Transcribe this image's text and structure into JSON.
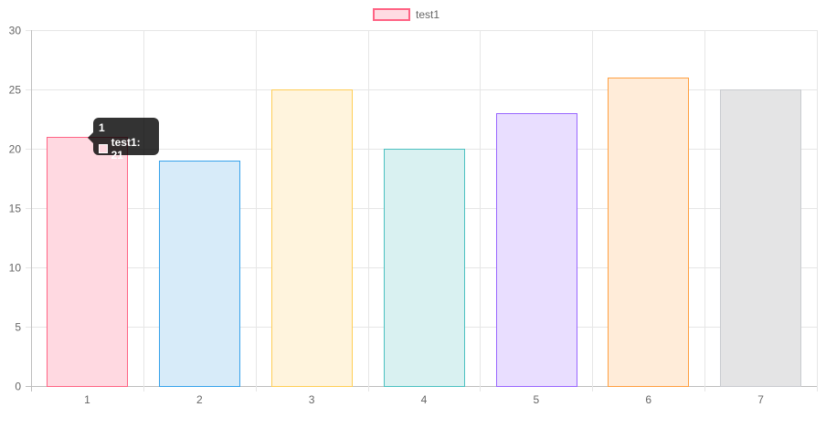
{
  "chart_data": {
    "type": "bar",
    "categories": [
      "1",
      "2",
      "3",
      "4",
      "5",
      "6",
      "7"
    ],
    "series": [
      {
        "name": "test1",
        "values": [
          21,
          19,
          25,
          20,
          23,
          26,
          25
        ]
      }
    ],
    "ylim": [
      0,
      30
    ],
    "yticks": [
      "0",
      "5",
      "10",
      "15",
      "20",
      "25",
      "30"
    ],
    "grid": true,
    "legend_position": "top",
    "legend_swatch_fill": "#FFDCE3",
    "legend_swatch_stroke": "#FF6384",
    "bar_fill_colors": [
      "#FFD9E1",
      "#D7EBF9",
      "#FFF4DD",
      "#D9F1F1",
      "#E9DEFF",
      "#FFECD9",
      "#E4E4E5"
    ],
    "bar_stroke_colors": [
      "#FF6384",
      "#36A2EB",
      "#FFCE56",
      "#4BC0C0",
      "#9966FF",
      "#FF9F40",
      "#C9CBCF"
    ],
    "tooltip": {
      "title": "1",
      "label": "test1: 21",
      "category_index": 0
    }
  }
}
